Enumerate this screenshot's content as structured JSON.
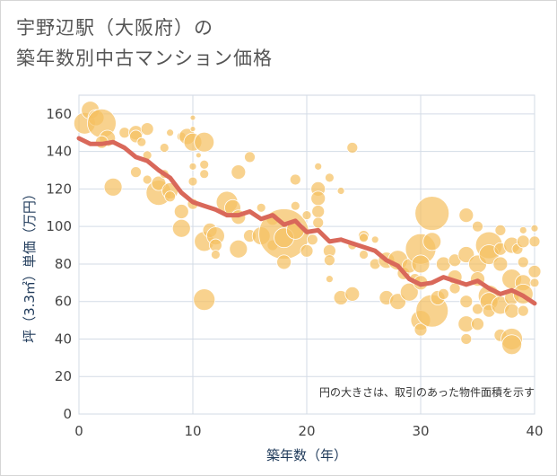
{
  "title_line1": "宇野辺駅（大阪府）の",
  "title_line2": "築年数別中古マンション価格",
  "chart_data": {
    "type": "scatter",
    "xlabel": "築年数（年）",
    "ylabel": "坪（3.3㎡）単価（万円）",
    "xlim": [
      0,
      40
    ],
    "ylim": [
      0,
      170
    ],
    "xticks": [
      0,
      10,
      20,
      30,
      40
    ],
    "yticks": [
      0,
      20,
      40,
      60,
      80,
      100,
      120,
      140,
      160
    ],
    "grid": true,
    "note": "円の大きさは、取引のあった物件面積を示す",
    "bubble_color": "#f5c062",
    "line_color": "#d9685a",
    "bubbles": [
      [
        0.5,
        155,
        12
      ],
      [
        1,
        162,
        10
      ],
      [
        1.5,
        158,
        9
      ],
      [
        2,
        155,
        16
      ],
      [
        2.5,
        147,
        9
      ],
      [
        2,
        145,
        7
      ],
      [
        3,
        121,
        10
      ],
      [
        4,
        150,
        6
      ],
      [
        5,
        150,
        8
      ],
      [
        5,
        148,
        7
      ],
      [
        5.5,
        145,
        5
      ],
      [
        6,
        152,
        7
      ],
      [
        6,
        138,
        5
      ],
      [
        5,
        129,
        6
      ],
      [
        6,
        125,
        5
      ],
      [
        7,
        118,
        14
      ],
      [
        7,
        123,
        8
      ],
      [
        7.5,
        128,
        5
      ],
      [
        8,
        119,
        9
      ],
      [
        8,
        116,
        6
      ],
      [
        7.5,
        142,
        5
      ],
      [
        8,
        150,
        4
      ],
      [
        9,
        148,
        5
      ],
      [
        9.5,
        148,
        9
      ],
      [
        10,
        145,
        10
      ],
      [
        11,
        145,
        11
      ],
      [
        10,
        158,
        3
      ],
      [
        10,
        152,
        3
      ],
      [
        9,
        108,
        8
      ],
      [
        9,
        99,
        10
      ],
      [
        10,
        112,
        6
      ],
      [
        10,
        124,
        5
      ],
      [
        10,
        132,
        4
      ],
      [
        10.5,
        138,
        3
      ],
      [
        11,
        61,
        12
      ],
      [
        11,
        92,
        11
      ],
      [
        11.5,
        98,
        8
      ],
      [
        12,
        95,
        10
      ],
      [
        12,
        90,
        7
      ],
      [
        12,
        85,
        5
      ],
      [
        11,
        128,
        5
      ],
      [
        11,
        133,
        5
      ],
      [
        13,
        113,
        12
      ],
      [
        13.5,
        110,
        9
      ],
      [
        14,
        105,
        8
      ],
      [
        14,
        88,
        10
      ],
      [
        14,
        129,
        8
      ],
      [
        15,
        95,
        7
      ],
      [
        15,
        137,
        6
      ],
      [
        16,
        95,
        10
      ],
      [
        16,
        110,
        5
      ],
      [
        17,
        104,
        7
      ],
      [
        17,
        90,
        6
      ],
      [
        18,
        96,
        28
      ],
      [
        18,
        94,
        11
      ],
      [
        18,
        81,
        8
      ],
      [
        19,
        98,
        10
      ],
      [
        19,
        125,
        6
      ],
      [
        19,
        111,
        5
      ],
      [
        20,
        106,
        5
      ],
      [
        20,
        87,
        7
      ],
      [
        20.5,
        93,
        6
      ],
      [
        21,
        120,
        8
      ],
      [
        21,
        115,
        8
      ],
      [
        21,
        108,
        7
      ],
      [
        21,
        102,
        6
      ],
      [
        21,
        132,
        4
      ],
      [
        22,
        126,
        5
      ],
      [
        22,
        87,
        7
      ],
      [
        22,
        82,
        6
      ],
      [
        22,
        72,
        4
      ],
      [
        23,
        62,
        8
      ],
      [
        23,
        119,
        4
      ],
      [
        24,
        142,
        6
      ],
      [
        24,
        64,
        8
      ],
      [
        24,
        90,
        5
      ],
      [
        25,
        95,
        6
      ],
      [
        25,
        85,
        5
      ],
      [
        25,
        94,
        5
      ],
      [
        26,
        93,
        4
      ],
      [
        26,
        80,
        6
      ],
      [
        27,
        62,
        8
      ],
      [
        27,
        82,
        9
      ],
      [
        28,
        82,
        11
      ],
      [
        28,
        60,
        9
      ],
      [
        28.5,
        75,
        7
      ],
      [
        29,
        65,
        10
      ],
      [
        29,
        79,
        8
      ],
      [
        29.5,
        72,
        6
      ],
      [
        30,
        88,
        17
      ],
      [
        30,
        80,
        10
      ],
      [
        30,
        70,
        8
      ],
      [
        30,
        50,
        11
      ],
      [
        30,
        45,
        7
      ],
      [
        31,
        107,
        19
      ],
      [
        31,
        55,
        18
      ],
      [
        31,
        92,
        10
      ],
      [
        31.5,
        62,
        8
      ],
      [
        32,
        80,
        8
      ],
      [
        32,
        64,
        6
      ],
      [
        33,
        82,
        7
      ],
      [
        33,
        73,
        8
      ],
      [
        33,
        67,
        6
      ],
      [
        34,
        85,
        9
      ],
      [
        34,
        106,
        8
      ],
      [
        34,
        60,
        7
      ],
      [
        34,
        48,
        9
      ],
      [
        34,
        40,
        6
      ],
      [
        35,
        80,
        10
      ],
      [
        35,
        100,
        6
      ],
      [
        35,
        72,
        8
      ],
      [
        35,
        56,
        6
      ],
      [
        35,
        48,
        7
      ],
      [
        36,
        90,
        15
      ],
      [
        36,
        85,
        11
      ],
      [
        36,
        63,
        12
      ],
      [
        36,
        60,
        10
      ],
      [
        36,
        55,
        7
      ],
      [
        37,
        98,
        6
      ],
      [
        37,
        88,
        7
      ],
      [
        37,
        80,
        8
      ],
      [
        37,
        58,
        10
      ],
      [
        37,
        42,
        7
      ],
      [
        38,
        90,
        9
      ],
      [
        38,
        72,
        11
      ],
      [
        38,
        62,
        8
      ],
      [
        38,
        55,
        8
      ],
      [
        38,
        40,
        12
      ],
      [
        38,
        37,
        11
      ],
      [
        38.5,
        88,
        6
      ],
      [
        39,
        92,
        7
      ],
      [
        39,
        81,
        6
      ],
      [
        39,
        70,
        9
      ],
      [
        39,
        64,
        11
      ],
      [
        39,
        55,
        6
      ],
      [
        39,
        98,
        4
      ],
      [
        40,
        99,
        4
      ],
      [
        40,
        92,
        6
      ],
      [
        40,
        76,
        7
      ],
      [
        40,
        70,
        5
      ]
    ],
    "trend_x": [
      0,
      1,
      2,
      3,
      4,
      5,
      6,
      7,
      8,
      9,
      10,
      11,
      12,
      13,
      14,
      15,
      16,
      17,
      18,
      19,
      20,
      21,
      22,
      23,
      24,
      25,
      26,
      27,
      28,
      29,
      30,
      31,
      32,
      33,
      34,
      35,
      36,
      37,
      38,
      39,
      40
    ],
    "trend_y": [
      147,
      144,
      144,
      145,
      142,
      137,
      135,
      130,
      126,
      118,
      113,
      111,
      109,
      106,
      106,
      108,
      104,
      106,
      101,
      103,
      97,
      98,
      92,
      93,
      91,
      89,
      87,
      82,
      79,
      72,
      69,
      70,
      73,
      71,
      69,
      71,
      67,
      64,
      66,
      63,
      59
    ]
  }
}
